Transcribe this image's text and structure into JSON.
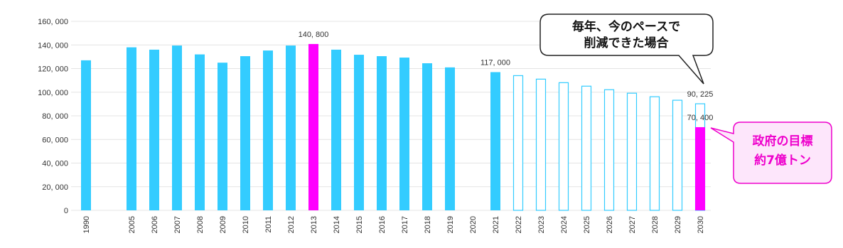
{
  "chart_data": {
    "type": "bar",
    "categories": [
      "1990",
      null,
      "2005",
      "2006",
      "2007",
      "2008",
      "2009",
      "2010",
      "2011",
      "2012",
      "2013",
      "2014",
      "2015",
      "2016",
      "2017",
      "2018",
      "2019",
      "2020",
      "2021",
      "2022",
      "2023",
      "2024",
      "2025",
      "2026",
      "2027",
      "2028",
      "2029",
      "2030"
    ],
    "series": [
      {
        "color": "#33ccff",
        "style": "filled",
        "values": [
          127000,
          null,
          138000,
          136000,
          139500,
          132000,
          125000,
          130500,
          135300,
          139500,
          null,
          136000,
          131700,
          130500,
          129300,
          124500,
          121000,
          null,
          117000,
          null,
          null,
          null,
          null,
          null,
          null,
          null,
          null,
          null
        ],
        "value_labels": [
          null,
          null,
          null,
          null,
          null,
          null,
          null,
          null,
          null,
          null,
          null,
          null,
          null,
          null,
          null,
          null,
          null,
          null,
          "117, 000",
          null,
          null,
          null,
          null,
          null,
          null,
          null,
          null,
          null
        ]
      },
      {
        "color": "#33ccff",
        "style": "outline",
        "values": [
          null,
          null,
          null,
          null,
          null,
          null,
          null,
          null,
          null,
          null,
          null,
          null,
          null,
          null,
          null,
          null,
          null,
          null,
          null,
          114025,
          111050,
          108075,
          105100,
          102125,
          99150,
          96175,
          93200,
          90225
        ],
        "value_labels": [
          null,
          null,
          null,
          null,
          null,
          null,
          null,
          null,
          null,
          null,
          null,
          null,
          null,
          null,
          null,
          null,
          null,
          null,
          null,
          null,
          null,
          null,
          null,
          null,
          null,
          null,
          null,
          "90, 225"
        ]
      },
      {
        "color": "#ff00ff",
        "style": "filled",
        "values": [
          null,
          null,
          null,
          null,
          null,
          null,
          null,
          null,
          null,
          null,
          140800,
          null,
          null,
          null,
          null,
          null,
          null,
          null,
          null,
          null,
          null,
          null,
          null,
          null,
          null,
          null,
          null,
          70400
        ],
        "value_labels": [
          null,
          null,
          null,
          null,
          null,
          null,
          null,
          null,
          null,
          null,
          "140, 800",
          null,
          null,
          null,
          null,
          null,
          null,
          null,
          null,
          null,
          null,
          null,
          null,
          null,
          null,
          null,
          null,
          "70, 400"
        ]
      }
    ],
    "ylim": [
      0,
      160000
    ],
    "yticks": [
      0,
      {
        "value": 20000,
        "label": "20, 000"
      },
      {
        "value": 40000,
        "label": "40, 000"
      },
      {
        "value": 60000,
        "label": "60, 000"
      },
      {
        "value": 80000,
        "label": "80, 000"
      },
      {
        "value": 100000,
        "label": "100, 000"
      },
      {
        "value": 120000,
        "label": "120, 000"
      },
      {
        "value": 140000,
        "label": "140, 000"
      },
      {
        "value": 160000,
        "label": "160, 000"
      }
    ],
    "grid": true,
    "annotations": [
      [
        "毎年、今のペースで",
        "削減できた場合"
      ],
      [
        "政府の目標",
        "約7億トン"
      ]
    ]
  }
}
